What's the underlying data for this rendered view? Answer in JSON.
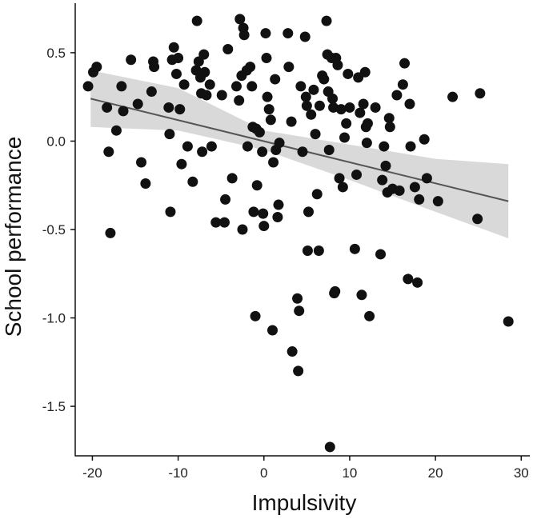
{
  "chart_data": {
    "type": "scatter",
    "title": "",
    "xlabel": "Impulsivity",
    "ylabel": "School performance",
    "xlim": [
      -22,
      31
    ],
    "ylim": [
      -1.78,
      0.78
    ],
    "x_ticks": [
      -20,
      -10,
      0,
      10,
      20,
      30
    ],
    "y_ticks": [
      -1.5,
      -1.0,
      -0.5,
      0.0,
      0.5
    ],
    "x_tick_labels": [
      "-20",
      "-10",
      "0",
      "10",
      "20",
      "30"
    ],
    "y_tick_labels": [
      "-1.5",
      "-1.0",
      "-0.5",
      "0.0",
      "0.5"
    ],
    "grid": false,
    "colors": {
      "points": "#111111",
      "trend_line": "#555555",
      "confidence_band": "#d9d9d9"
    },
    "trend_line": {
      "x": [
        -20.2,
        28.5
      ],
      "y": [
        0.24,
        -0.34
      ]
    },
    "confidence_band": {
      "x": [
        -20.2,
        -10,
        0,
        10,
        20,
        28.5
      ],
      "lower": [
        0.08,
        0.06,
        -0.05,
        -0.22,
        -0.4,
        -0.55
      ],
      "upper": [
        0.4,
        0.3,
        0.06,
        -0.02,
        -0.1,
        -0.13
      ]
    },
    "points": [
      {
        "x": -20.5,
        "y": 0.31
      },
      {
        "x": -19.9,
        "y": 0.39
      },
      {
        "x": -19.5,
        "y": 0.42
      },
      {
        "x": -18.3,
        "y": 0.19
      },
      {
        "x": -18.1,
        "y": -0.06
      },
      {
        "x": -17.9,
        "y": -0.52
      },
      {
        "x": -17.2,
        "y": 0.06
      },
      {
        "x": -16.6,
        "y": 0.31
      },
      {
        "x": -16.4,
        "y": 0.17
      },
      {
        "x": -15.5,
        "y": 0.46
      },
      {
        "x": -14.7,
        "y": 0.21
      },
      {
        "x": -14.3,
        "y": -0.12
      },
      {
        "x": -13.8,
        "y": -0.24
      },
      {
        "x": -13.1,
        "y": 0.28
      },
      {
        "x": -12.9,
        "y": 0.45
      },
      {
        "x": -12.8,
        "y": 0.42
      },
      {
        "x": -11.1,
        "y": 0.19
      },
      {
        "x": -11.0,
        "y": 0.04
      },
      {
        "x": -10.9,
        "y": -0.4
      },
      {
        "x": -10.7,
        "y": 0.46
      },
      {
        "x": -10.5,
        "y": 0.53
      },
      {
        "x": -10.2,
        "y": 0.38
      },
      {
        "x": -10.0,
        "y": 0.47
      },
      {
        "x": -9.8,
        "y": 0.18
      },
      {
        "x": -9.6,
        "y": -0.13
      },
      {
        "x": -9.3,
        "y": 0.32
      },
      {
        "x": -8.9,
        "y": -0.03
      },
      {
        "x": -8.3,
        "y": -0.23
      },
      {
        "x": -7.9,
        "y": 0.4
      },
      {
        "x": -7.8,
        "y": 0.68
      },
      {
        "x": -7.6,
        "y": 0.45
      },
      {
        "x": -7.4,
        "y": 0.36
      },
      {
        "x": -7.3,
        "y": 0.27
      },
      {
        "x": -7.2,
        "y": -0.06
      },
      {
        "x": -7.0,
        "y": 0.49
      },
      {
        "x": -6.9,
        "y": 0.39
      },
      {
        "x": -6.7,
        "y": 0.26
      },
      {
        "x": -6.3,
        "y": 0.32
      },
      {
        "x": -6.1,
        "y": -0.03
      },
      {
        "x": -5.6,
        "y": -0.46
      },
      {
        "x": -4.9,
        "y": 0.26
      },
      {
        "x": -4.6,
        "y": -0.46
      },
      {
        "x": -4.5,
        "y": -0.33
      },
      {
        "x": -4.2,
        "y": 0.52
      },
      {
        "x": -3.7,
        "y": -0.21
      },
      {
        "x": -3.2,
        "y": 0.31
      },
      {
        "x": -2.9,
        "y": 0.23
      },
      {
        "x": -2.8,
        "y": 0.69
      },
      {
        "x": -2.6,
        "y": 0.37
      },
      {
        "x": -2.5,
        "y": -0.5
      },
      {
        "x": -2.4,
        "y": 0.64
      },
      {
        "x": -2.3,
        "y": 0.6
      },
      {
        "x": -2.0,
        "y": 0.4
      },
      {
        "x": -1.9,
        "y": -0.03
      },
      {
        "x": -1.6,
        "y": 0.42
      },
      {
        "x": -1.4,
        "y": 0.31
      },
      {
        "x": -1.3,
        "y": 0.08
      },
      {
        "x": -1.2,
        "y": -0.4
      },
      {
        "x": -1.0,
        "y": -0.99
      },
      {
        "x": -0.9,
        "y": 0.07
      },
      {
        "x": -0.8,
        "y": -0.25
      },
      {
        "x": -0.5,
        "y": 0.05
      },
      {
        "x": -0.2,
        "y": -0.06
      },
      {
        "x": -0.1,
        "y": -0.41
      },
      {
        "x": 0.0,
        "y": -0.48
      },
      {
        "x": 0.2,
        "y": 0.61
      },
      {
        "x": 0.3,
        "y": 0.47
      },
      {
        "x": 0.4,
        "y": 0.25
      },
      {
        "x": 0.6,
        "y": 0.18
      },
      {
        "x": 0.8,
        "y": 0.12
      },
      {
        "x": 1.0,
        "y": -1.07
      },
      {
        "x": 1.1,
        "y": -0.12
      },
      {
        "x": 1.3,
        "y": 0.35
      },
      {
        "x": 1.4,
        "y": -0.05
      },
      {
        "x": 1.6,
        "y": -0.43
      },
      {
        "x": 1.7,
        "y": -0.36
      },
      {
        "x": 1.8,
        "y": -0.01
      },
      {
        "x": 2.8,
        "y": 0.61
      },
      {
        "x": 2.9,
        "y": 0.42
      },
      {
        "x": 3.2,
        "y": 0.11
      },
      {
        "x": 3.3,
        "y": -1.19
      },
      {
        "x": 3.9,
        "y": -0.89
      },
      {
        "x": 4.0,
        "y": -1.3
      },
      {
        "x": 4.1,
        "y": -0.96
      },
      {
        "x": 4.3,
        "y": 0.31
      },
      {
        "x": 4.5,
        "y": -0.06
      },
      {
        "x": 4.8,
        "y": 0.59
      },
      {
        "x": 4.9,
        "y": 0.25
      },
      {
        "x": 5.0,
        "y": 0.2
      },
      {
        "x": 5.1,
        "y": -0.62
      },
      {
        "x": 5.2,
        "y": -0.4
      },
      {
        "x": 5.5,
        "y": 0.15
      },
      {
        "x": 5.8,
        "y": 0.29
      },
      {
        "x": 6.0,
        "y": 0.04
      },
      {
        "x": 6.2,
        "y": -0.3
      },
      {
        "x": 6.4,
        "y": -0.62
      },
      {
        "x": 6.5,
        "y": 0.2
      },
      {
        "x": 6.8,
        "y": 0.37
      },
      {
        "x": 7.0,
        "y": 0.35
      },
      {
        "x": 7.3,
        "y": 0.68
      },
      {
        "x": 7.4,
        "y": 0.49
      },
      {
        "x": 7.5,
        "y": 0.28
      },
      {
        "x": 7.6,
        "y": -0.05
      },
      {
        "x": 7.7,
        "y": -1.73
      },
      {
        "x": 7.9,
        "y": 0.47
      },
      {
        "x": 8.0,
        "y": 0.24
      },
      {
        "x": 8.1,
        "y": 0.19
      },
      {
        "x": 8.2,
        "y": -0.86
      },
      {
        "x": 8.3,
        "y": -0.85
      },
      {
        "x": 8.4,
        "y": 0.47
      },
      {
        "x": 8.6,
        "y": 0.43
      },
      {
        "x": 8.8,
        "y": -0.21
      },
      {
        "x": 9.0,
        "y": 0.18
      },
      {
        "x": 9.2,
        "y": -0.26
      },
      {
        "x": 9.4,
        "y": 0.02
      },
      {
        "x": 9.6,
        "y": 0.1
      },
      {
        "x": 9.8,
        "y": 0.38
      },
      {
        "x": 10.0,
        "y": 0.19
      },
      {
        "x": 10.6,
        "y": -0.61
      },
      {
        "x": 10.8,
        "y": -0.19
      },
      {
        "x": 11.0,
        "y": 0.36
      },
      {
        "x": 11.2,
        "y": 0.16
      },
      {
        "x": 11.4,
        "y": -0.87
      },
      {
        "x": 11.6,
        "y": 0.21
      },
      {
        "x": 11.8,
        "y": 0.39
      },
      {
        "x": 11.9,
        "y": 0.08
      },
      {
        "x": 12.0,
        "y": -0.01
      },
      {
        "x": 12.1,
        "y": 0.1
      },
      {
        "x": 12.3,
        "y": -0.99
      },
      {
        "x": 13.0,
        "y": 0.19
      },
      {
        "x": 13.6,
        "y": -0.64
      },
      {
        "x": 13.8,
        "y": -0.22
      },
      {
        "x": 14.0,
        "y": -0.03
      },
      {
        "x": 14.2,
        "y": -0.14
      },
      {
        "x": 14.4,
        "y": -0.29
      },
      {
        "x": 14.6,
        "y": 0.13
      },
      {
        "x": 14.7,
        "y": 0.08
      },
      {
        "x": 15.0,
        "y": -0.27
      },
      {
        "x": 15.5,
        "y": 0.26
      },
      {
        "x": 15.8,
        "y": -0.28
      },
      {
        "x": 16.2,
        "y": 0.32
      },
      {
        "x": 16.4,
        "y": 0.44
      },
      {
        "x": 16.8,
        "y": -0.78
      },
      {
        "x": 17.0,
        "y": 0.21
      },
      {
        "x": 17.1,
        "y": -0.03
      },
      {
        "x": 17.6,
        "y": -0.26
      },
      {
        "x": 17.9,
        "y": -0.8
      },
      {
        "x": 18.1,
        "y": -0.33
      },
      {
        "x": 18.7,
        "y": 0.01
      },
      {
        "x": 19.0,
        "y": -0.21
      },
      {
        "x": 20.3,
        "y": -0.34
      },
      {
        "x": 22.0,
        "y": 0.25
      },
      {
        "x": 24.9,
        "y": -0.44
      },
      {
        "x": 25.2,
        "y": 0.27
      },
      {
        "x": 28.5,
        "y": -1.02
      }
    ]
  }
}
